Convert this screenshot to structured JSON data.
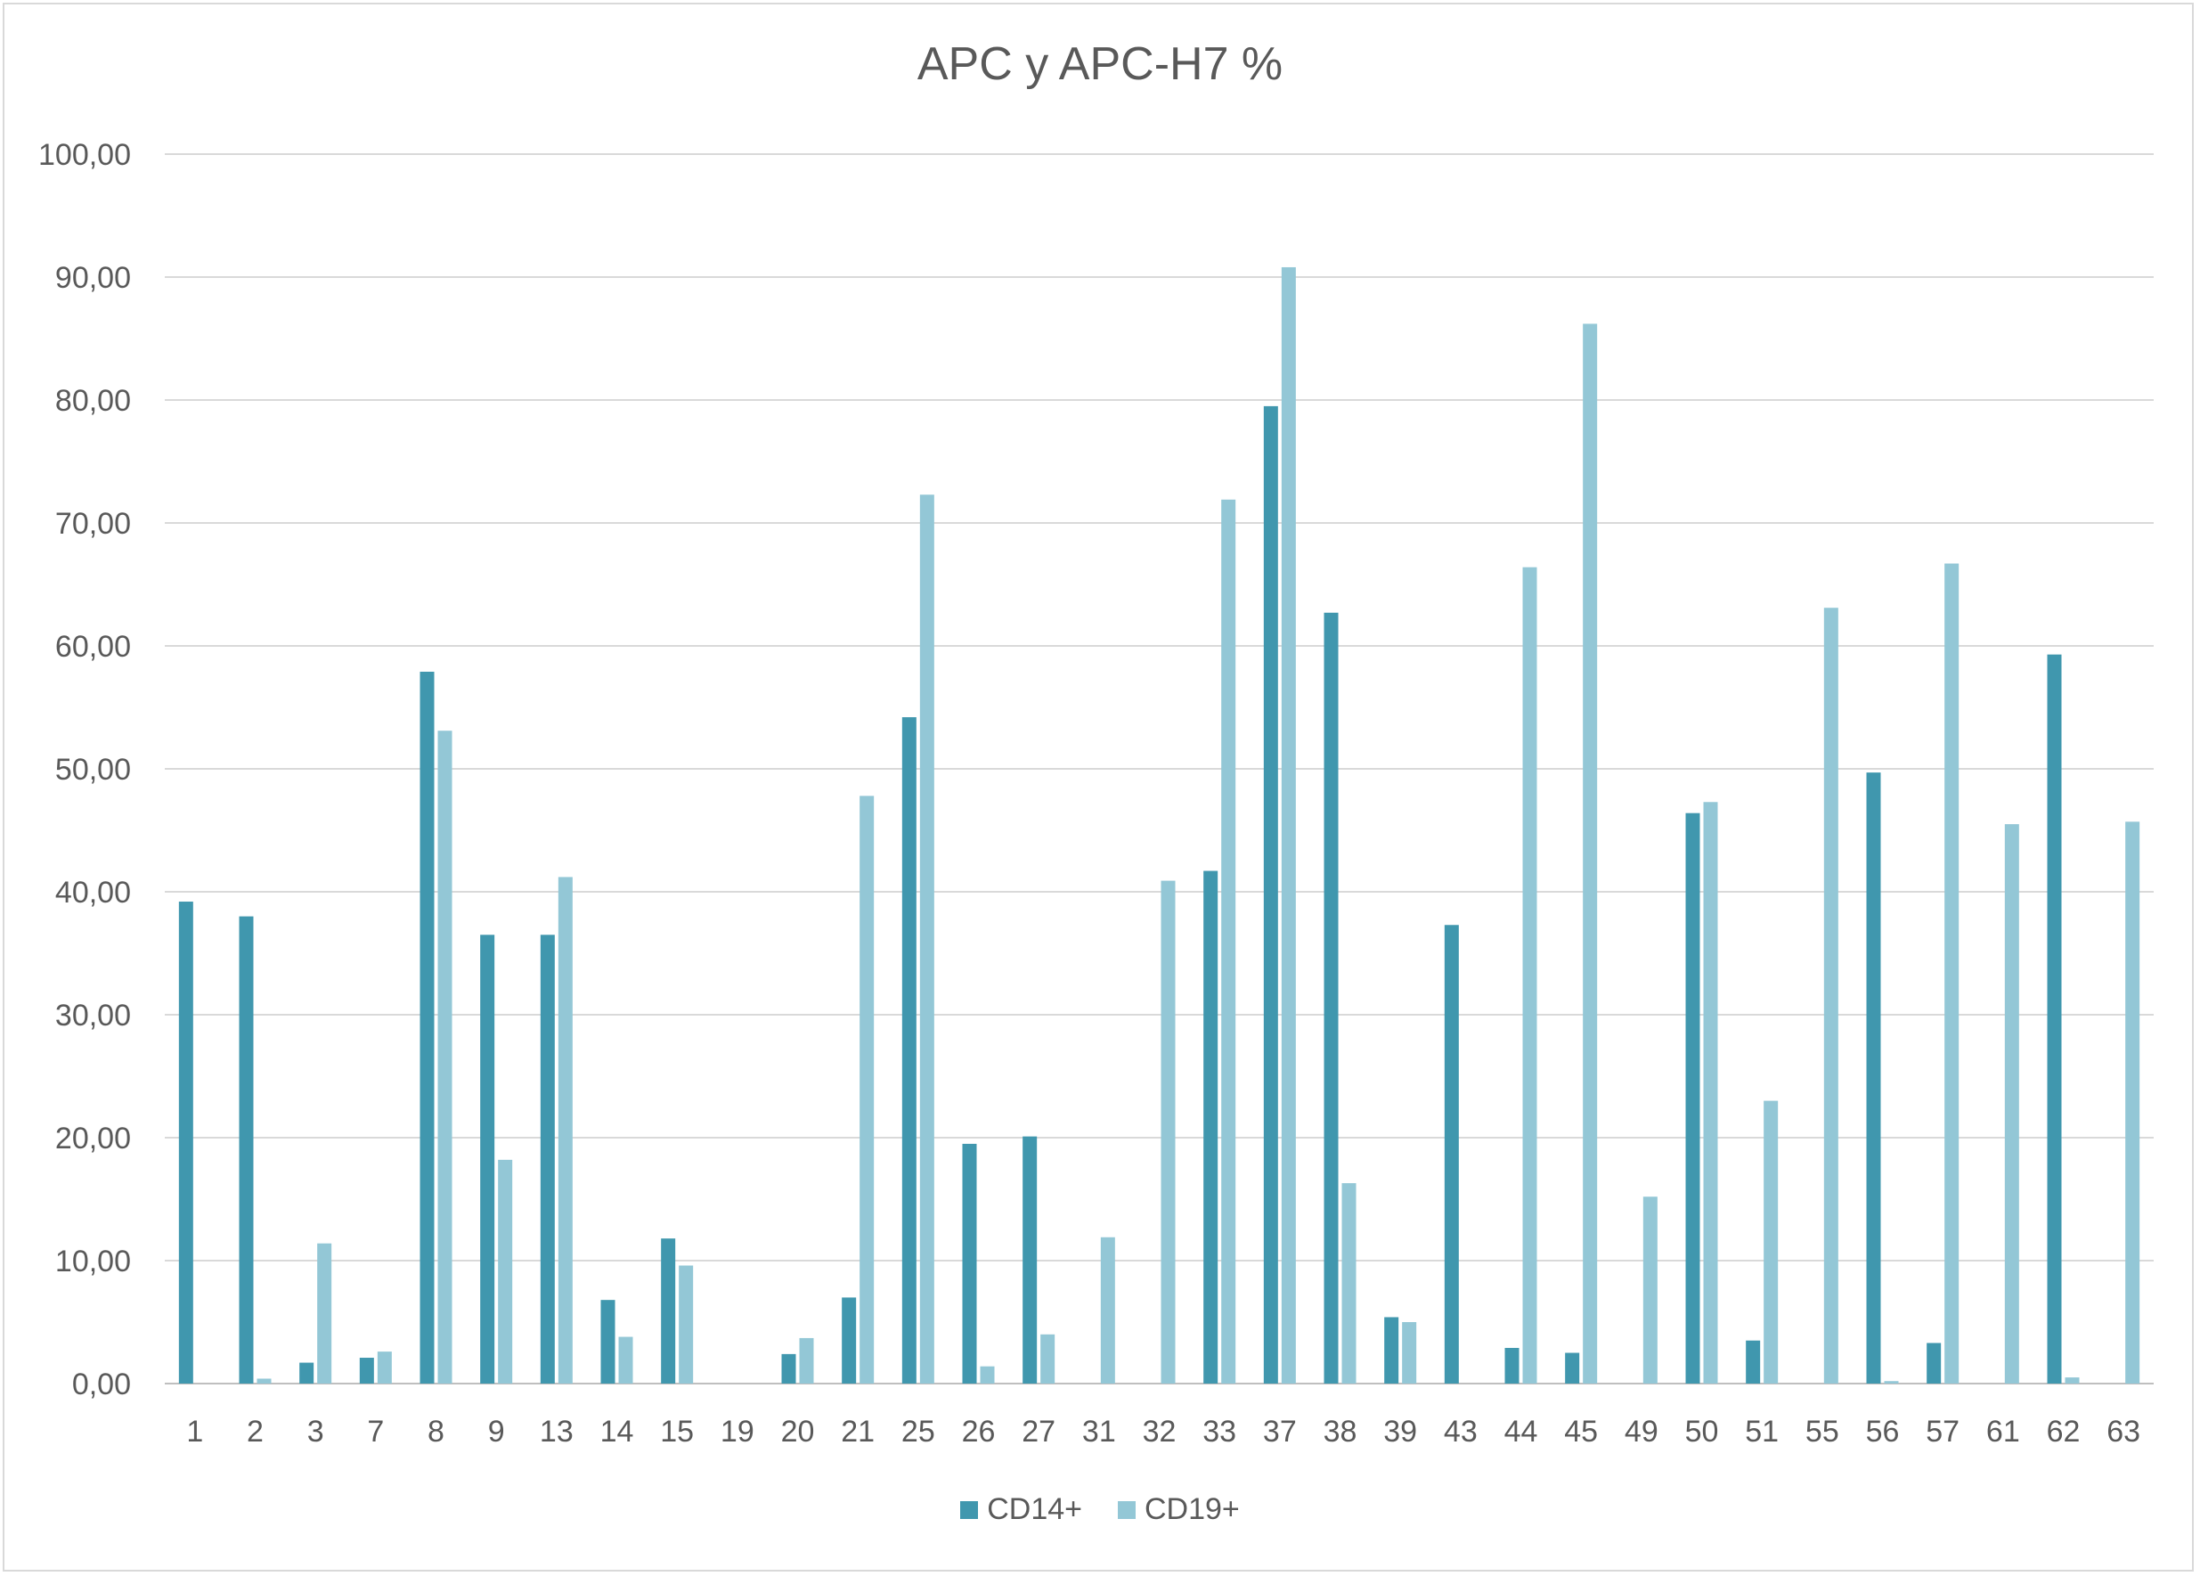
{
  "chart_data": {
    "type": "bar",
    "title": "APC y APC-H7 %",
    "xlabel": "",
    "ylabel": "",
    "ylim": [
      0,
      100
    ],
    "ytick_labels": [
      "0,00",
      "10,00",
      "20,00",
      "30,00",
      "40,00",
      "50,00",
      "60,00",
      "70,00",
      "80,00",
      "90,00",
      "100,00"
    ],
    "grid": true,
    "legend_position": "bottom",
    "categories": [
      "1",
      "2",
      "3",
      "7",
      "8",
      "9",
      "13",
      "14",
      "15",
      "19",
      "20",
      "21",
      "25",
      "26",
      "27",
      "31",
      "32",
      "33",
      "37",
      "38",
      "39",
      "43",
      "44",
      "45",
      "49",
      "50",
      "51",
      "55",
      "56",
      "57",
      "61",
      "62",
      "63"
    ],
    "series": [
      {
        "name": "CD14+",
        "color": "#4097ae",
        "values": [
          39.2,
          38.0,
          1.7,
          2.1,
          57.9,
          36.5,
          36.5,
          6.8,
          11.8,
          0,
          2.4,
          7.0,
          54.2,
          19.5,
          20.1,
          0,
          0,
          41.7,
          79.5,
          62.7,
          5.4,
          37.3,
          2.9,
          2.5,
          0,
          46.4,
          3.5,
          0,
          49.7,
          3.3,
          0,
          59.3,
          0
        ]
      },
      {
        "name": "CD19+",
        "color": "#93c7d6",
        "values": [
          0,
          0.4,
          11.4,
          2.6,
          53.1,
          18.2,
          41.2,
          3.8,
          9.6,
          0,
          3.7,
          47.8,
          72.3,
          1.4,
          4.0,
          11.9,
          40.9,
          71.9,
          90.8,
          16.3,
          5.0,
          0,
          66.4,
          86.2,
          15.2,
          47.3,
          23.0,
          63.1,
          0.2,
          66.7,
          45.5,
          0.5,
          45.7
        ]
      }
    ]
  }
}
